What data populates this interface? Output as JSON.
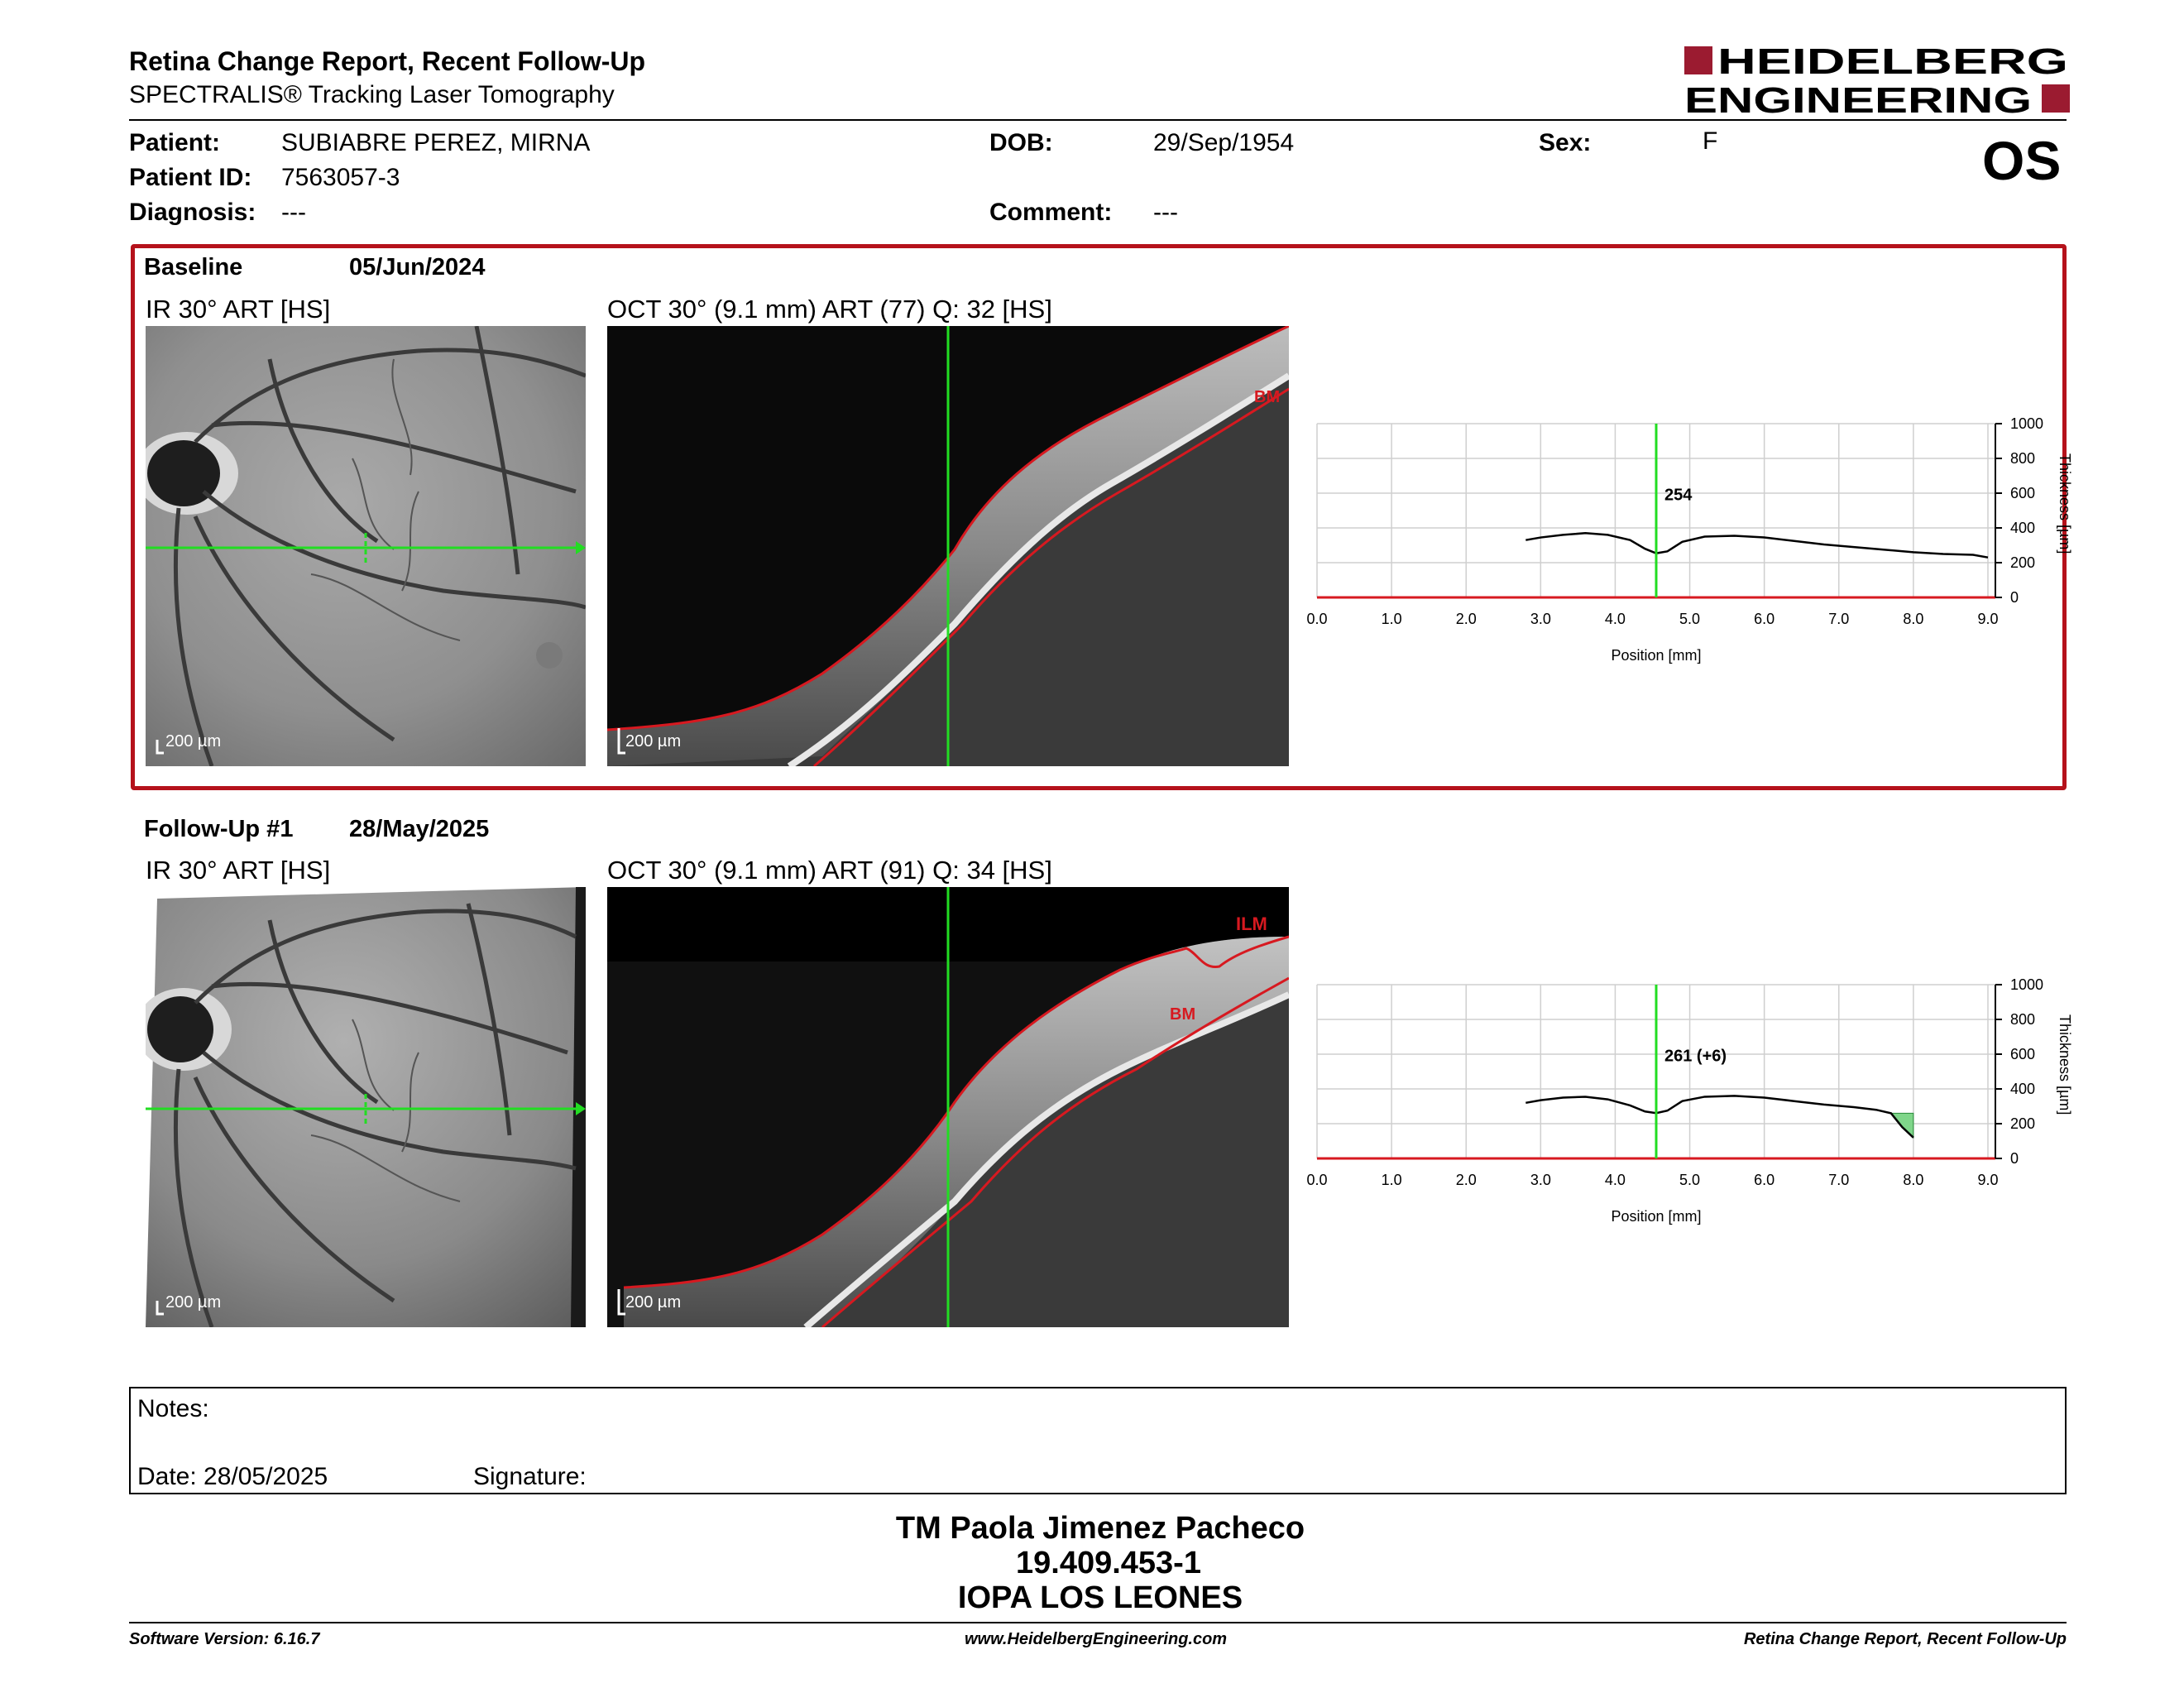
{
  "header": {
    "title": "Retina Change Report, Recent Follow-Up",
    "subtitle": "SPECTRALIS® Tracking Laser Tomography",
    "logo_line1": "HEIDELBERG",
    "logo_line2": "ENGINEERING",
    "brand_color": "#9b1b30"
  },
  "patient": {
    "patient_label": "Patient:",
    "patient_value": "SUBIABRE PEREZ, MIRNA",
    "id_label": "Patient ID:",
    "id_value": "7563057-3",
    "diagnosis_label": "Diagnosis:",
    "diagnosis_value": "---",
    "dob_label": "DOB:",
    "dob_value": "29/Sep/1954",
    "comment_label": "Comment:",
    "comment_value": "---",
    "sex_label": "Sex:",
    "sex_value": "F",
    "eye": "OS"
  },
  "baseline": {
    "label": "Baseline",
    "date": "05/Jun/2024",
    "ir_caption": "IR 30° ART [HS]",
    "oct_caption": "OCT 30° (9.1 mm) ART (77) Q: 32 [HS]",
    "ir_scale": "200 µm",
    "oct_scale": "200 µm",
    "oct_marker_bm": "BM",
    "panel_color": "#b5121b"
  },
  "followup": {
    "label": "Follow-Up #1",
    "date": "28/May/2025",
    "ir_caption": "IR 30° ART [HS]",
    "oct_caption": "OCT 30° (9.1 mm) ART (91) Q: 34 [HS]",
    "ir_scale": "200 µm",
    "oct_scale": "200 µm",
    "oct_marker_ilm": "ILM",
    "oct_marker_bm": "BM"
  },
  "chart_data": [
    {
      "type": "line",
      "xlabel": "Position [mm]",
      "ylabel": "Thickness [µm]",
      "xlim": [
        0,
        9.1
      ],
      "ylim": [
        0,
        1000
      ],
      "x_ticks": [
        "0.0",
        "1.0",
        "2.0",
        "3.0",
        "4.0",
        "5.0",
        "6.0",
        "7.0",
        "8.0",
        "9.0"
      ],
      "y_ticks": [
        "0",
        "200",
        "400",
        "600",
        "800",
        "1000"
      ],
      "grid": true,
      "cursor_x": 4.55,
      "cursor_label": "254",
      "series": [
        {
          "x": [
            2.8,
            3.0,
            3.3,
            3.6,
            3.9,
            4.2,
            4.4,
            4.55,
            4.7,
            4.9,
            5.2,
            5.6,
            6.0,
            6.4,
            6.8,
            7.2,
            7.6,
            8.0,
            8.4,
            8.8,
            9.0
          ],
          "values": [
            330,
            345,
            360,
            370,
            360,
            330,
            280,
            254,
            265,
            320,
            350,
            355,
            345,
            325,
            305,
            290,
            275,
            260,
            250,
            245,
            230
          ]
        }
      ]
    },
    {
      "type": "line",
      "xlabel": "Position [mm]",
      "ylabel": "Thickness [µm]",
      "xlim": [
        0,
        9.1
      ],
      "ylim": [
        0,
        1000
      ],
      "x_ticks": [
        "0.0",
        "1.0",
        "2.0",
        "3.0",
        "4.0",
        "5.0",
        "6.0",
        "7.0",
        "8.0",
        "9.0"
      ],
      "y_ticks": [
        "0",
        "200",
        "400",
        "600",
        "800",
        "1000"
      ],
      "grid": true,
      "cursor_x": 4.55,
      "cursor_label": "261 (+6)",
      "change_color": "#7fd68a",
      "series": [
        {
          "x": [
            2.8,
            3.0,
            3.3,
            3.6,
            3.9,
            4.2,
            4.4,
            4.55,
            4.7,
            4.9,
            5.2,
            5.6,
            6.0,
            6.4,
            6.8,
            7.2,
            7.5,
            7.7,
            7.85,
            8.0
          ],
          "values": [
            320,
            335,
            350,
            355,
            340,
            305,
            270,
            261,
            275,
            330,
            355,
            360,
            350,
            330,
            310,
            295,
            280,
            260,
            180,
            120
          ]
        }
      ]
    }
  ],
  "notes": {
    "notes_label": "Notes:",
    "date_label": "Date: 28/05/2025",
    "signature_label": "Signature:"
  },
  "signature_block": {
    "name": "TM Paola Jimenez Pacheco",
    "rut": "19.409.453-1",
    "institution": "IOPA LOS LEONES"
  },
  "footer": {
    "software": "Software Version: 6.16.7",
    "website": "www.HeidelbergEngineering.com",
    "report": "Retina Change Report, Recent Follow-Up"
  }
}
